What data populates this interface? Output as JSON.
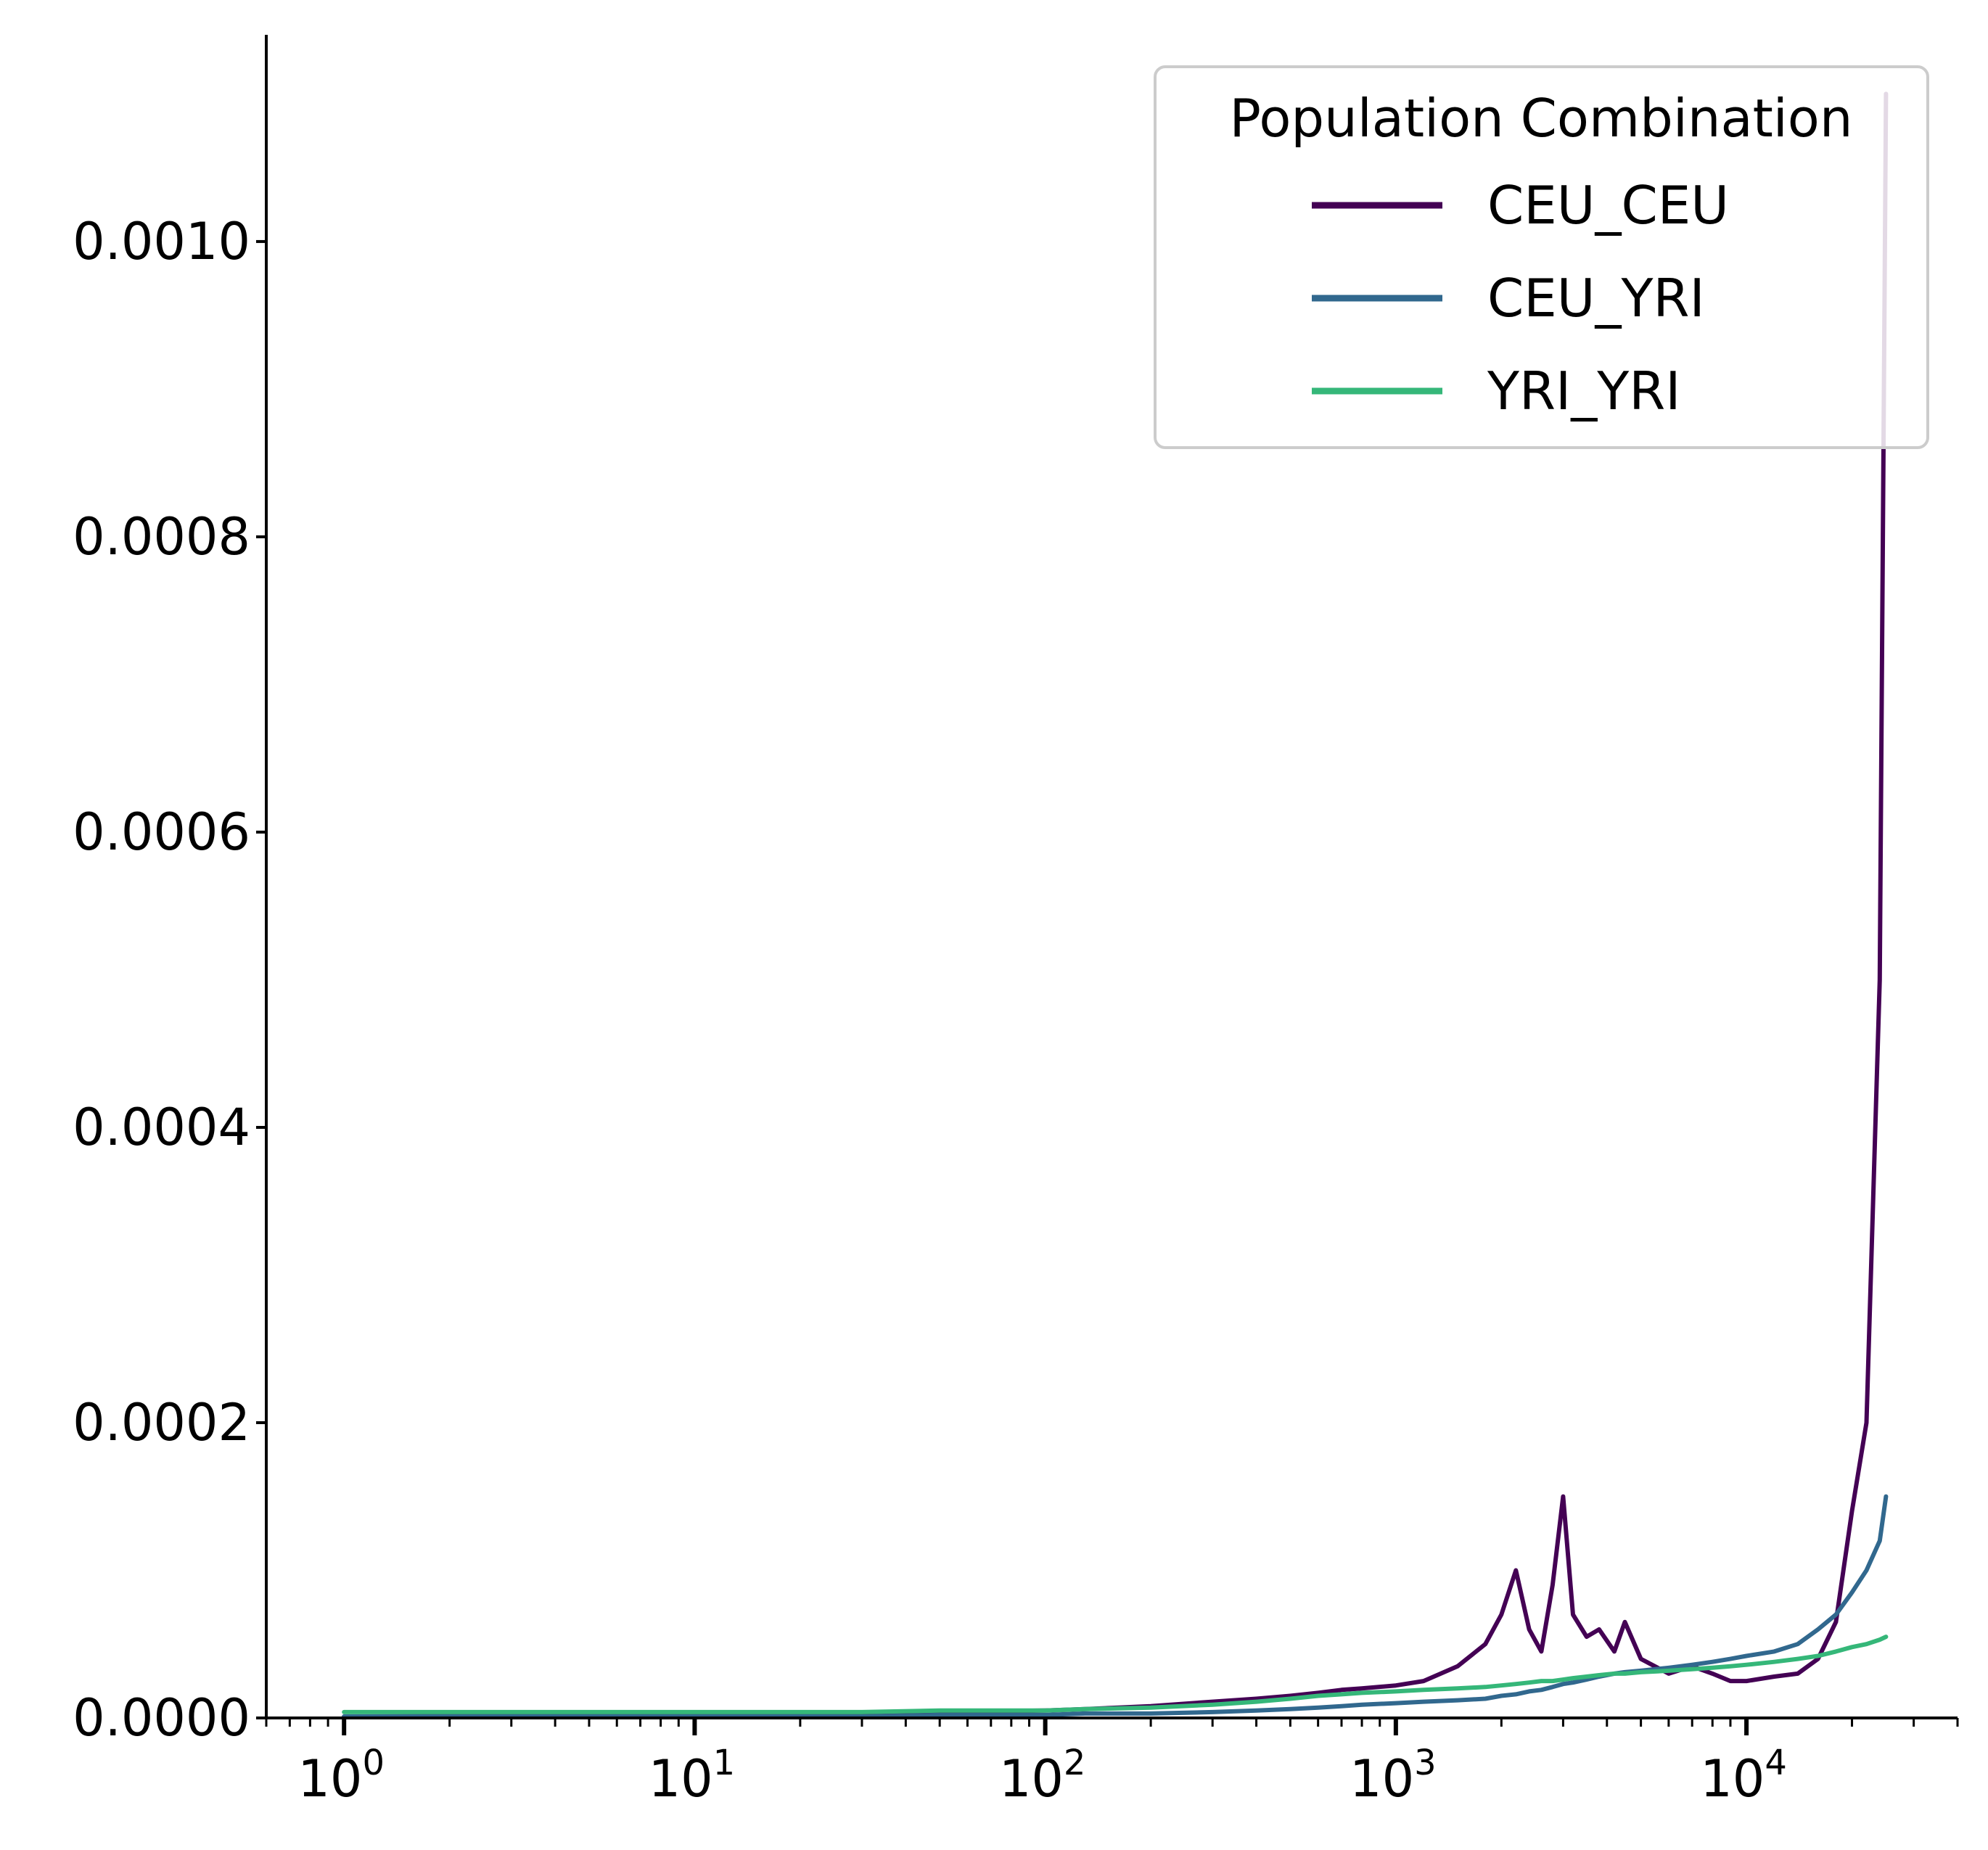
{
  "chart_data": {
    "type": "line",
    "title": "",
    "xlabel": "",
    "ylabel": "",
    "x_scale": "log",
    "xlim": [
      0.6,
      40000
    ],
    "ylim": [
      0,
      0.00114
    ],
    "grid": false,
    "x_ticks": [
      {
        "value": 1,
        "base": "10",
        "exp": "0"
      },
      {
        "value": 10,
        "base": "10",
        "exp": "1"
      },
      {
        "value": 100,
        "base": "10",
        "exp": "2"
      },
      {
        "value": 1000,
        "base": "10",
        "exp": "3"
      },
      {
        "value": 10000,
        "base": "10",
        "exp": "4"
      }
    ],
    "y_ticks": [
      {
        "value": 0.0,
        "label": "0.0000"
      },
      {
        "value": 0.0002,
        "label": "0.0002"
      },
      {
        "value": 0.0004,
        "label": "0.0004"
      },
      {
        "value": 0.0006,
        "label": "0.0006"
      },
      {
        "value": 0.0008,
        "label": "0.0008"
      },
      {
        "value": 0.001,
        "label": "0.0010"
      }
    ],
    "legend": {
      "title": "Population Combination",
      "placement": "top-right",
      "entries": [
        {
          "label": "CEU_CEU",
          "color": "#440154"
        },
        {
          "label": "CEU_YRI",
          "color": "#31688e"
        },
        {
          "label": "YRI_YRI",
          "color": "#35b779"
        }
      ]
    },
    "x": [
      1,
      10,
      30,
      50,
      100,
      130,
      200,
      300,
      400,
      500,
      600,
      700,
      800,
      1000,
      1200,
      1500,
      1800,
      2000,
      2200,
      2400,
      2600,
      2800,
      3000,
      3200,
      3500,
      3800,
      4200,
      4500,
      5000,
      6000,
      7000,
      8000,
      9000,
      10000,
      12000,
      14000,
      16000,
      18000,
      20000,
      22000,
      24000,
      25000
    ],
    "series": [
      {
        "name": "CEU_CEU",
        "color": "#440154",
        "values": [
          1e-06,
          2e-06,
          3e-06,
          4e-06,
          5e-06,
          6e-06,
          8e-06,
          1.1e-05,
          1.3e-05,
          1.5e-05,
          1.7e-05,
          1.9e-05,
          2e-05,
          2.2e-05,
          2.5e-05,
          3.5e-05,
          5e-05,
          7e-05,
          0.0001,
          6e-05,
          4.5e-05,
          9e-05,
          0.00015,
          7e-05,
          5.5e-05,
          6e-05,
          4.5e-05,
          6.5e-05,
          4e-05,
          3e-05,
          3.5e-05,
          3e-05,
          2.5e-05,
          2.5e-05,
          2.8e-05,
          3e-05,
          4e-05,
          6.5e-05,
          0.00014,
          0.0002,
          0.0005,
          0.0011
        ]
      },
      {
        "name": "CEU_YRI",
        "color": "#31688e",
        "values": [
          1e-06,
          1e-06,
          1e-06,
          2e-06,
          2e-06,
          3e-06,
          3e-06,
          4e-06,
          5e-06,
          6e-06,
          7e-06,
          8e-06,
          9e-06,
          1e-05,
          1.1e-05,
          1.2e-05,
          1.3e-05,
          1.5e-05,
          1.6e-05,
          1.8e-05,
          1.9e-05,
          2.1e-05,
          2.3e-05,
          2.4e-05,
          2.6e-05,
          2.8e-05,
          3e-05,
          3.1e-05,
          3.2e-05,
          3.4e-05,
          3.6e-05,
          3.8e-05,
          4e-05,
          4.2e-05,
          4.5e-05,
          5e-05,
          6e-05,
          7e-05,
          8.5e-05,
          0.0001,
          0.00012,
          0.00015
        ]
      },
      {
        "name": "YRI_YRI",
        "color": "#35b779",
        "values": [
          4e-06,
          4e-06,
          4e-06,
          5e-06,
          5e-06,
          6e-06,
          7e-06,
          9e-06,
          1.1e-05,
          1.3e-05,
          1.5e-05,
          1.6e-05,
          1.7e-05,
          1.8e-05,
          1.9e-05,
          2e-05,
          2.1e-05,
          2.2e-05,
          2.3e-05,
          2.4e-05,
          2.5e-05,
          2.5e-05,
          2.6e-05,
          2.7e-05,
          2.8e-05,
          2.9e-05,
          3e-05,
          3e-05,
          3.1e-05,
          3.2e-05,
          3.3e-05,
          3.4e-05,
          3.5e-05,
          3.6e-05,
          3.8e-05,
          4e-05,
          4.2e-05,
          4.5e-05,
          4.8e-05,
          5e-05,
          5.3e-05,
          5.5e-05
        ]
      }
    ]
  }
}
